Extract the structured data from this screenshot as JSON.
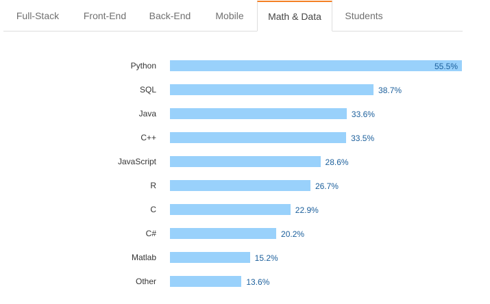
{
  "tabs": [
    {
      "label": "Full-Stack",
      "active": false
    },
    {
      "label": "Front-End",
      "active": false
    },
    {
      "label": "Back-End",
      "active": false
    },
    {
      "label": "Mobile",
      "active": false
    },
    {
      "label": "Math & Data",
      "active": true
    },
    {
      "label": "Students",
      "active": false
    }
  ],
  "colors": {
    "accent": "#f48024",
    "bar": "#99d1fb",
    "value_label": "#1a5e9b"
  },
  "chart_data": {
    "type": "bar",
    "orientation": "horizontal",
    "categories": [
      "Python",
      "SQL",
      "Java",
      "C++",
      "JavaScript",
      "R",
      "C",
      "C#",
      "Matlab",
      "Other"
    ],
    "values": [
      55.5,
      38.7,
      33.6,
      33.5,
      28.6,
      26.7,
      22.9,
      20.2,
      15.2,
      13.6
    ],
    "value_labels": [
      "55.5%",
      "38.7%",
      "33.6%",
      "33.5%",
      "28.6%",
      "26.7%",
      "22.9%",
      "20.2%",
      "15.2%",
      "13.6%"
    ],
    "title": "",
    "xlabel": "",
    "ylabel": "",
    "xlim": [
      0,
      55.5
    ],
    "grid": false,
    "legend": "none"
  }
}
